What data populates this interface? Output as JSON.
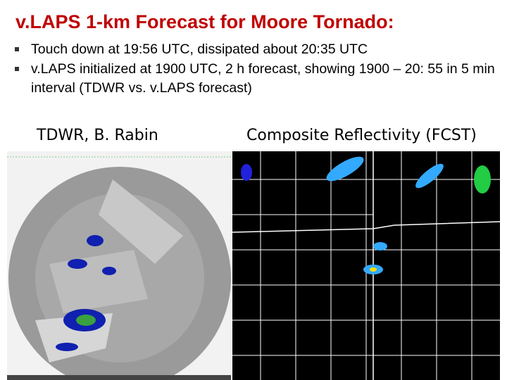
{
  "title": "v.LAPS 1-km Forecast for Moore Tornado:",
  "bullets": [
    "Touch down at 19:56 UTC, dissipated about 20:35 UTC",
    "v.LAPS initialized at 1900 UTC, 2 h forecast, showing 1900 – 20: 55 in 5 min interval (TDWR vs. v.LAPS forecast)"
  ],
  "panels": [
    {
      "label": "TDWR, B. Rabin"
    },
    {
      "label": "Composite Reflectivity (FCST)"
    }
  ]
}
